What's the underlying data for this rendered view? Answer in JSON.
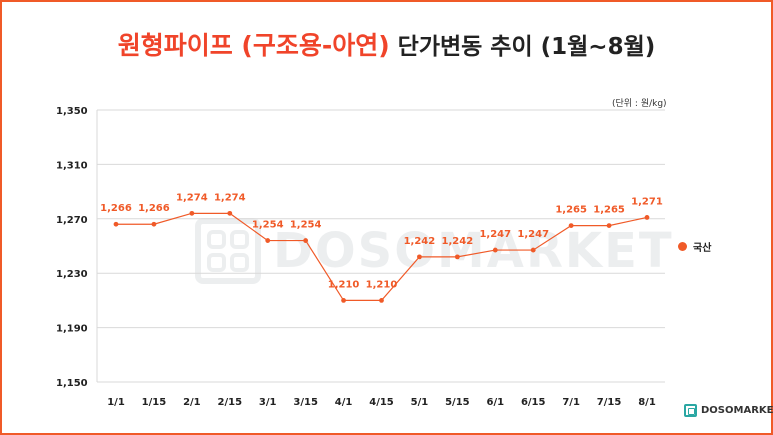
{
  "title_accent": "원형파이프 (구조용-아연)",
  "title_rest": "단가변동 추이 (1월~8월)",
  "unit_label": "(단위 : 원/kg)",
  "brand": "DOSOMARKET",
  "watermark": "DOSOMARKET",
  "colors": {
    "accent": "#f05a28",
    "title_accent": "#f0442a"
  },
  "chart_data": {
    "type": "line",
    "title": "원형파이프 (구조용-아연) 단가변동 추이 (1월~8월)",
    "categories": [
      "1/1",
      "1/15",
      "2/1",
      "2/15",
      "3/1",
      "3/15",
      "4/1",
      "4/15",
      "5/1",
      "5/15",
      "6/1",
      "6/15",
      "7/1",
      "7/15",
      "8/1"
    ],
    "series": [
      {
        "name": "국산",
        "values": [
          1266,
          1266,
          1274,
          1274,
          1254,
          1254,
          1210,
          1210,
          1242,
          1242,
          1247,
          1247,
          1265,
          1265,
          1271
        ]
      }
    ],
    "data_labels": [
      "1,266",
      "1,266",
      "1,274",
      "1,274",
      "1,254",
      "1,254",
      "1,210",
      "1,210",
      "1,242",
      "1,242",
      "1,247",
      "1,247",
      "1,265",
      "1,265",
      "1,271"
    ],
    "y_ticks": [
      1150,
      1190,
      1230,
      1270,
      1310,
      1350
    ],
    "y_tick_labels": [
      "1,150",
      "1,190",
      "1,230",
      "1,270",
      "1,310",
      "1,350"
    ],
    "ylim": [
      1150,
      1350
    ],
    "grid": "horizontal",
    "legend_position": "right"
  }
}
